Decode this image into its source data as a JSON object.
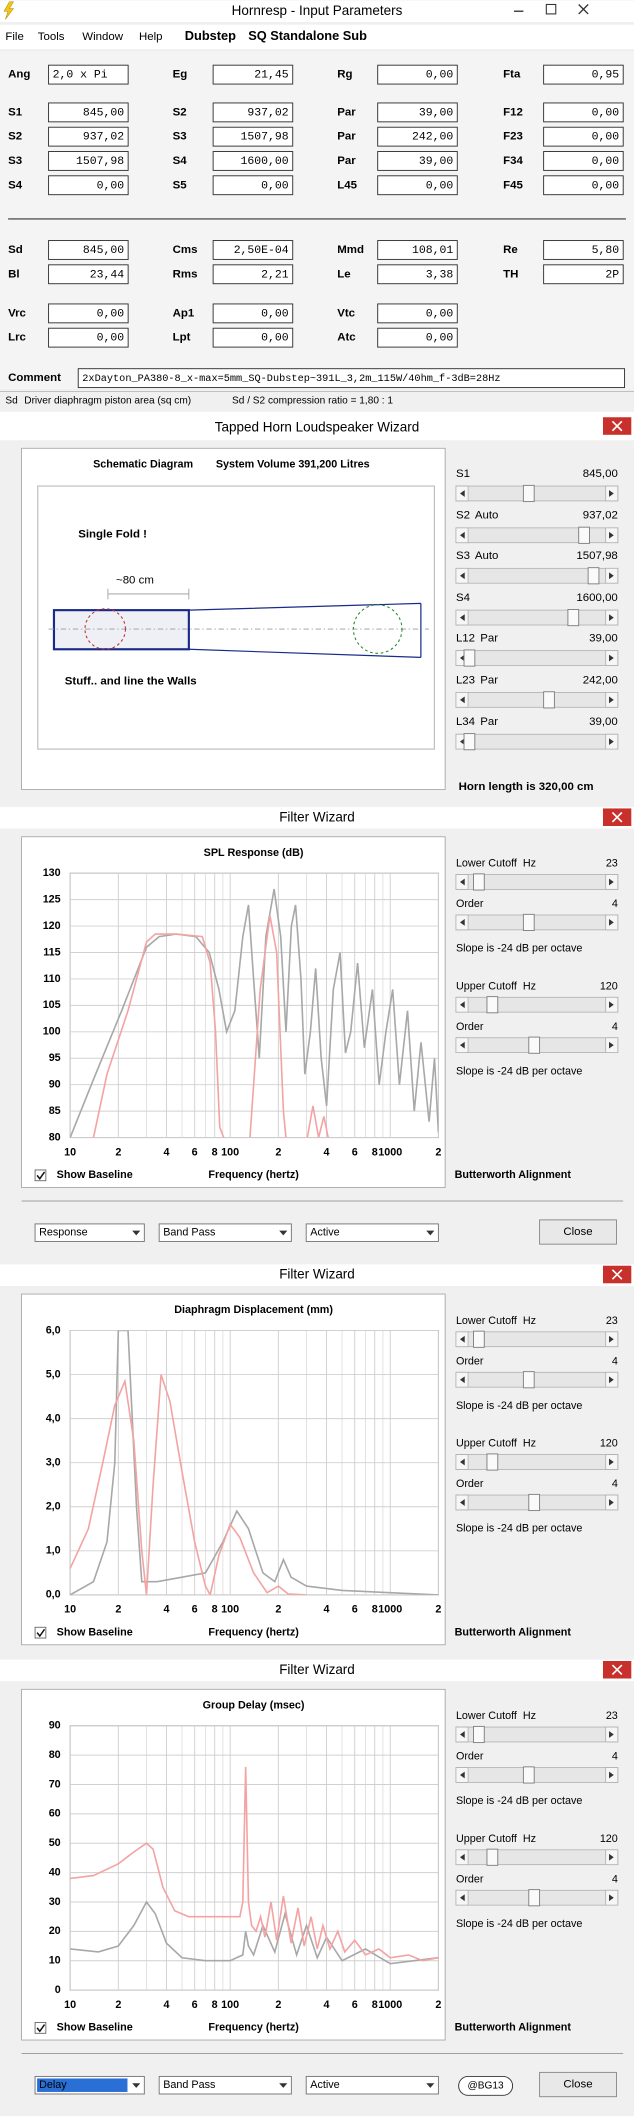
{
  "window": {
    "title": "Hornresp - Input Parameters",
    "menu": [
      "File",
      "Tools",
      "Window",
      "Help"
    ],
    "tags": [
      "Dubstep",
      "SQ Standalone Sub"
    ]
  },
  "params": [
    [
      {
        "label": "Ang",
        "value": "2,0 x Pi"
      },
      {
        "label": "Eg",
        "value": "21,45"
      },
      {
        "label": "Rg",
        "value": "0,00"
      },
      {
        "label": "Fta",
        "value": "0,95",
        "value_color": "#808080"
      }
    ],
    [
      {
        "label": "S1",
        "value": "845,00"
      },
      {
        "label": "S2",
        "value": "937,02"
      },
      {
        "label": "Par",
        "value": "39,00"
      },
      {
        "label": "F12",
        "value": "0,00",
        "value_color": "#808080"
      }
    ],
    [
      {
        "label": "S2",
        "value": "937,02"
      },
      {
        "label": "S3",
        "value": "1507,98"
      },
      {
        "label": "Par",
        "value": "242,00"
      },
      {
        "label": "F23",
        "value": "0,00",
        "value_color": "#808080"
      }
    ],
    [
      {
        "label": "S3",
        "value": "1507,98"
      },
      {
        "label": "S4",
        "value": "1600,00"
      },
      {
        "label": "Par",
        "value": "39,00"
      },
      {
        "label": "F34",
        "value": "0,00",
        "value_color": "#808080"
      }
    ],
    [
      {
        "label": "S4",
        "value": "0,00"
      },
      {
        "label": "S5",
        "value": "0,00"
      },
      {
        "label": "L45",
        "value": "0,00"
      },
      {
        "label": "F45",
        "value": "0,00",
        "value_color": "#808080"
      }
    ],
    [
      {
        "label": "Sd",
        "value": "845,00"
      },
      {
        "label": "Cms",
        "value": "2,50E-04"
      },
      {
        "label": "Mmd",
        "value": "108,01"
      },
      {
        "label": "Re",
        "value": "5,80"
      }
    ],
    [
      {
        "label": "Bl",
        "value": "23,44"
      },
      {
        "label": "Rms",
        "value": "2,21"
      },
      {
        "label": "Le",
        "value": "3,38"
      },
      {
        "label": "TH",
        "value": "2P",
        "label_color": "#c00000",
        "value_color": "#808080"
      }
    ],
    [
      {
        "label": "Vrc",
        "value": "0,00"
      },
      {
        "label": "Ap1",
        "value": "0,00"
      },
      {
        "label": "Vtc",
        "value": "0,00"
      }
    ],
    [
      {
        "label": "Lrc",
        "value": "0,00"
      },
      {
        "label": "Lpt",
        "value": "0,00"
      },
      {
        "label": "Atc",
        "value": "0,00"
      }
    ]
  ],
  "comment": {
    "label": "Comment",
    "value": "2xDayton_PA380-8_x-max=5mm_SQ-Dubstep~391L_3,2m_115W/40hm_f-3dB=28Hz"
  },
  "status": {
    "field": "Sd",
    "description": "Driver diaphragm piston area (sq cm)",
    "ratio": "Sd / S2 compression ratio = 1,80 : 1"
  },
  "horn_wizard": {
    "title": "Tapped Horn Loudspeaker Wizard",
    "schematic_title": "Schematic Diagram",
    "system_volume": "System Volume 391,200 Litres",
    "notes": [
      "Single Fold !",
      "~80 cm",
      "Stuff.. and line the Walls"
    ],
    "sliders": [
      {
        "label": "S1",
        "value": "845,00"
      },
      {
        "label": "S2",
        "mode": "Auto",
        "value": "937,02"
      },
      {
        "label": "S3",
        "mode": "Auto",
        "value": "1507,98"
      },
      {
        "label": "S4",
        "value": "1600,00"
      },
      {
        "label": "L12",
        "mode": "Par",
        "value": "39,00"
      },
      {
        "label": "L23",
        "mode": "Par",
        "value": "242,00"
      },
      {
        "label": "L34",
        "mode": "Par",
        "value": "39,00"
      }
    ],
    "horn_length": "Horn length is 320,00 cm"
  },
  "filter_wizards": [
    {
      "title": "Filter Wizard",
      "lower_cutoff": {
        "label": "Lower Cutoff  Hz",
        "value": "23"
      },
      "lower_order": {
        "label": "Order",
        "value": "4"
      },
      "lower_slope": "Slope is -24 dB per octave",
      "upper_cutoff": {
        "label": "Upper Cutoff  Hz",
        "value": "120"
      },
      "upper_order": {
        "label": "Order",
        "value": "4"
      },
      "upper_slope": "Slope is -24 dB per octave",
      "show_baseline": "Show Baseline",
      "alignment": "Butterworth Alignment",
      "dropdowns": [
        "Response",
        "Band Pass",
        "Active"
      ],
      "close": "Close"
    },
    {
      "title": "Filter Wizard",
      "lower_cutoff": {
        "label": "Lower Cutoff  Hz",
        "value": "23"
      },
      "lower_order": {
        "label": "Order",
        "value": "4"
      },
      "lower_slope": "Slope is -24 dB per octave",
      "upper_cutoff": {
        "label": "Upper Cutoff  Hz",
        "value": "120"
      },
      "upper_order": {
        "label": "Order",
        "value": "4"
      },
      "upper_slope": "Slope is -24 dB per octave",
      "show_baseline": "Show Baseline",
      "alignment": "Butterworth Alignment"
    },
    {
      "title": "Filter Wizard",
      "lower_cutoff": {
        "label": "Lower Cutoff  Hz",
        "value": "23"
      },
      "lower_order": {
        "label": "Order",
        "value": "4"
      },
      "lower_slope": "Slope is -24 dB per octave",
      "upper_cutoff": {
        "label": "Upper Cutoff  Hz",
        "value": "120"
      },
      "upper_order": {
        "label": "Order",
        "value": "4"
      },
      "upper_slope": "Slope is -24 dB per octave",
      "show_baseline": "Show Baseline",
      "alignment": "Butterworth Alignment",
      "dropdowns": [
        "Delay",
        "Band Pass",
        "Active"
      ],
      "badge": "@BG13",
      "close": "Close"
    }
  ],
  "chart_data": [
    {
      "type": "line",
      "title": "SPL Response (dB)",
      "xlabel": "Frequency (hertz)",
      "x_scale": "log",
      "grid": true,
      "xlim": [
        10,
        2000
      ],
      "ylim": [
        80,
        130
      ],
      "xticks": [
        10,
        {
          "value": 20,
          "label": "2"
        },
        {
          "value": 40,
          "label": "4"
        },
        {
          "value": 60,
          "label": "6"
        },
        {
          "value": 80,
          "label": "8"
        },
        100,
        {
          "value": 200,
          "label": "2"
        },
        {
          "value": 400,
          "label": "4"
        },
        {
          "value": 600,
          "label": "6"
        },
        {
          "value": 800,
          "label": "8"
        },
        1000,
        {
          "value": 2000,
          "label": "2"
        }
      ],
      "minor_xticks": [
        30,
        50,
        70,
        90,
        300,
        500,
        700,
        900
      ],
      "yticks": [
        80,
        85,
        90,
        95,
        100,
        105,
        110,
        115,
        120,
        125,
        130
      ],
      "series": [
        {
          "color": "#a8a8a8",
          "x": [
            10,
            14,
            21,
            30,
            36,
            46,
            61,
            74,
            85,
            95,
            107,
            120,
            130,
            140,
            152,
            167,
            188,
            207,
            223,
            241,
            256,
            277,
            293,
            317,
            342,
            370,
            400,
            441,
            486,
            525,
            567,
            625,
            689,
            774,
            853,
            940,
            1036,
            1141,
            1282,
            1413,
            1557,
            1750,
            1891,
            2000
          ],
          "values": [
            80,
            91,
            104,
            116,
            118,
            118.5,
            118,
            115,
            108,
            100,
            104,
            118,
            124,
            110,
            95,
            118,
            127,
            118,
            100,
            120,
            124,
            110,
            92,
            100,
            112,
            95,
            86,
            108,
            115,
            96,
            100,
            113,
            97,
            108,
            90,
            100,
            108,
            90,
            104,
            85,
            98,
            83,
            95,
            81
          ]
        },
        {
          "color": "#f4a3a3",
          "x": [
            14,
            17,
            23,
            30,
            34,
            46,
            67,
            75,
            81,
            86,
            91,
            110,
            133,
            154,
            177,
            195,
            215,
            223,
            260,
            303,
            329,
            357,
            385,
            410
          ],
          "values": [
            80,
            92,
            104,
            117,
            118.5,
            118.5,
            118,
            113,
            100,
            82,
            80,
            null,
            80,
            108,
            122,
            115,
            85,
            80,
            null,
            80,
            86,
            80,
            84,
            80
          ]
        }
      ]
    },
    {
      "type": "line",
      "title": "Diaphragm Displacement (mm)",
      "xlabel": "Frequency (hertz)",
      "x_scale": "log",
      "grid": true,
      "xlim": [
        10,
        2000
      ],
      "ylim": [
        0,
        6
      ],
      "xticks": [
        10,
        {
          "value": 20,
          "label": "2"
        },
        {
          "value": 40,
          "label": "4"
        },
        {
          "value": 60,
          "label": "6"
        },
        {
          "value": 80,
          "label": "8"
        },
        100,
        {
          "value": 200,
          "label": "2"
        },
        {
          "value": 400,
          "label": "4"
        },
        {
          "value": 600,
          "label": "6"
        },
        {
          "value": 800,
          "label": "8"
        },
        1000,
        {
          "value": 2000,
          "label": "2"
        }
      ],
      "minor_xticks": [
        30,
        50,
        70,
        90,
        300,
        500,
        700,
        900
      ],
      "yticks": [
        {
          "value": 0,
          "label": "0,0"
        },
        {
          "value": 1,
          "label": "1,0"
        },
        {
          "value": 2,
          "label": "2,0"
        },
        {
          "value": 3,
          "label": "3,0"
        },
        {
          "value": 4,
          "label": "4,0"
        },
        {
          "value": 5,
          "label": "5,0"
        },
        {
          "value": 6,
          "label": "6,0"
        }
      ],
      "series": [
        {
          "color": "#a8a8a8",
          "x": [
            10,
            14,
            17,
            19,
            20,
            23,
            26,
            28,
            35,
            50,
            70,
            90,
            110,
            130,
            160,
            190,
            215,
            240,
            300,
            500,
            1000,
            2000
          ],
          "values": [
            0,
            0.3,
            1.2,
            3,
            6,
            6,
            2,
            0.3,
            0.3,
            0.4,
            0.5,
            1.2,
            1.9,
            1.5,
            0.5,
            0.3,
            0.8,
            0.4,
            0.2,
            0.1,
            0.05,
            0
          ]
        },
        {
          "color": "#f4a3a3",
          "x": [
            10,
            13,
            16,
            19,
            22,
            25,
            28,
            30,
            33,
            37,
            42,
            50,
            60,
            70,
            75,
            85,
            100,
            115,
            140,
            170,
            200,
            230,
            300
          ],
          "values": [
            0.6,
            1.5,
            3.0,
            4.3,
            4.85,
            3.5,
            1.0,
            0,
            2.5,
            5.0,
            4.4,
            2.8,
            1.2,
            0.2,
            0,
            0.9,
            1.6,
            1.3,
            0.5,
            0.05,
            0.2,
            0.02,
            0
          ]
        }
      ]
    },
    {
      "type": "line",
      "title": "Group Delay (msec)",
      "xlabel": "Frequency (hertz)",
      "x_scale": "log",
      "grid": true,
      "xlim": [
        10,
        2000
      ],
      "ylim": [
        0,
        90
      ],
      "xticks": [
        10,
        {
          "value": 20,
          "label": "2"
        },
        {
          "value": 40,
          "label": "4"
        },
        {
          "value": 60,
          "label": "6"
        },
        {
          "value": 80,
          "label": "8"
        },
        100,
        {
          "value": 200,
          "label": "2"
        },
        {
          "value": 400,
          "label": "4"
        },
        {
          "value": 600,
          "label": "6"
        },
        {
          "value": 800,
          "label": "8"
        },
        1000,
        {
          "value": 2000,
          "label": "2"
        }
      ],
      "minor_xticks": [
        30,
        50,
        70,
        90,
        300,
        500,
        700,
        900
      ],
      "yticks": [
        0,
        10,
        20,
        30,
        40,
        50,
        60,
        70,
        80,
        90
      ],
      "series": [
        {
          "color": "#a8a8a8",
          "x": [
            10,
            15,
            20,
            25,
            30,
            34,
            40,
            50,
            70,
            100,
            120,
            125,
            130,
            140,
            160,
            190,
            220,
            260,
            300,
            350,
            400,
            500,
            700,
            1000,
            2000
          ],
          "values": [
            14,
            13,
            15,
            22,
            30,
            26,
            16,
            11,
            10,
            10,
            12,
            20,
            15,
            12,
            22,
            13,
            26,
            12,
            22,
            11,
            18,
            10,
            14,
            9,
            11
          ]
        },
        {
          "color": "#f4a3a3",
          "x": [
            10,
            14,
            20,
            25,
            30,
            33,
            38,
            45,
            55,
            70,
            95,
            115,
            120,
            125,
            130,
            136,
            145,
            155,
            165,
            180,
            195,
            215,
            240,
            265,
            290,
            320,
            350,
            380,
            420,
            470,
            520,
            600,
            700,
            850,
            1000,
            1300,
            1600,
            2000
          ],
          "values": [
            38,
            39,
            43,
            47,
            50,
            48,
            35,
            27,
            25,
            25,
            25,
            25,
            30,
            76,
            30,
            22,
            20,
            25,
            18,
            30,
            17,
            32,
            16,
            28,
            15,
            25,
            14,
            22,
            14,
            20,
            13,
            17,
            12,
            14,
            11,
            12,
            10,
            11
          ]
        }
      ]
    }
  ]
}
